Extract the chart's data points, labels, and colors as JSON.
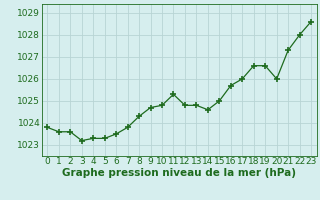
{
  "x": [
    0,
    1,
    2,
    3,
    4,
    5,
    6,
    7,
    8,
    9,
    10,
    11,
    12,
    13,
    14,
    15,
    16,
    17,
    18,
    19,
    20,
    21,
    22,
    23
  ],
  "y": [
    1023.8,
    1023.6,
    1023.6,
    1023.2,
    1023.3,
    1023.3,
    1023.5,
    1023.8,
    1024.3,
    1024.7,
    1024.8,
    1025.3,
    1024.8,
    1024.8,
    1024.6,
    1025.0,
    1025.7,
    1026.0,
    1026.6,
    1026.6,
    1026.0,
    1027.3,
    1028.0,
    1028.6
  ],
  "line_color": "#1e6b1e",
  "marker": "+",
  "marker_size": 4,
  "marker_linewidth": 1.2,
  "bg_color": "#d6eeee",
  "grid_color": "#b8d4d4",
  "xlabel": "Graphe pression niveau de la mer (hPa)",
  "xlabel_fontsize": 7.5,
  "ylabel_ticks": [
    1023,
    1024,
    1025,
    1026,
    1027,
    1028,
    1029
  ],
  "ylim": [
    1022.5,
    1029.4
  ],
  "xlim": [
    -0.5,
    23.5
  ],
  "tick_fontsize": 6.5,
  "label_color": "#1e6b1e",
  "linewidth": 0.9
}
